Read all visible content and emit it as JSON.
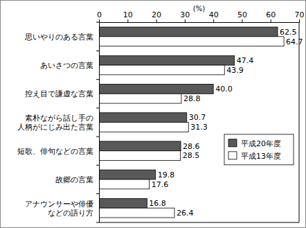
{
  "chart_data": {
    "type": "bar",
    "orientation": "horizontal",
    "xlabel": "(%)",
    "categories": [
      "思いやりのある言葉",
      "あいさつの言葉",
      "控え目で謙虚な言葉",
      "素朴ながら話し手の\n人柄がにじみ出た言葉",
      "短歌、俳句などの言葉",
      "故郷の言葉",
      "アナウンサーや俳優\nなどの語り方"
    ],
    "series": [
      {
        "name": "平成20年度",
        "color": "#595959",
        "values": [
          62.5,
          47.4,
          40.0,
          30.7,
          28.6,
          19.8,
          16.8
        ],
        "value_labels": [
          "62.5",
          "47.4",
          "40.0",
          "30.7",
          "28.6",
          "19.8",
          "16.8"
        ]
      },
      {
        "name": "平成13年度",
        "color": "#ffffff",
        "values": [
          64.7,
          43.9,
          28.8,
          31.3,
          28.5,
          17.6,
          26.4
        ],
        "value_labels": [
          "64.7",
          "43.9",
          "28.8",
          "31.3",
          "28.5",
          "17.6",
          "26.4"
        ]
      }
    ],
    "xlim": [
      0,
      70
    ],
    "xticks": [
      0,
      10,
      20,
      30,
      40,
      50,
      60,
      70
    ],
    "data_labels": true,
    "grid": false,
    "legend": "right"
  }
}
